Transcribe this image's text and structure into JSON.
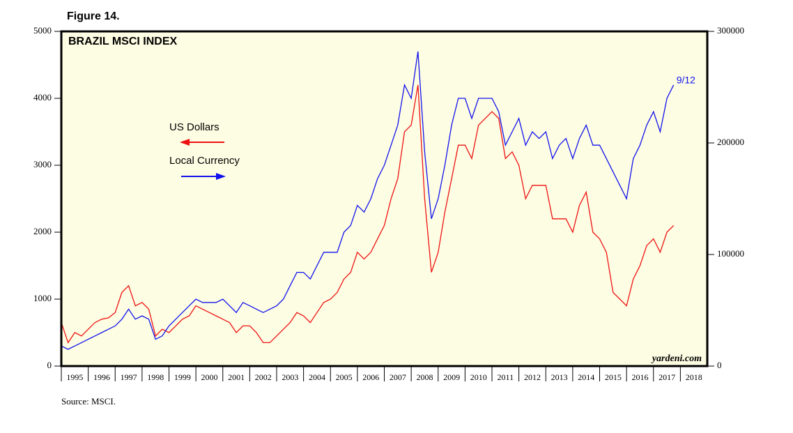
{
  "chart_data": {
    "type": "line",
    "figure_label": "Figure 14.",
    "title": "BRAZIL MSCI INDEX",
    "source": "Source: MSCI.",
    "watermark": "yardeni.com",
    "end_label": "9/12",
    "xlim": [
      1995,
      2019
    ],
    "xticks": [
      1995,
      1996,
      1997,
      1998,
      1999,
      2000,
      2001,
      2002,
      2003,
      2004,
      2005,
      2006,
      2007,
      2008,
      2009,
      2010,
      2011,
      2012,
      2013,
      2014,
      2015,
      2016,
      2017,
      2018
    ],
    "ylim": [
      0,
      5000
    ],
    "yticks": [
      0,
      1000,
      2000,
      3000,
      4000,
      5000
    ],
    "y2lim": [
      0,
      300000
    ],
    "y2ticks": [
      0,
      100000,
      200000,
      300000
    ],
    "x": [
      1995,
      1995.25,
      1995.5,
      1995.75,
      1996,
      1996.25,
      1996.5,
      1996.75,
      1997,
      1997.25,
      1997.5,
      1997.75,
      1998,
      1998.25,
      1998.5,
      1998.75,
      1999,
      1999.25,
      1999.5,
      1999.75,
      2000,
      2000.25,
      2000.5,
      2000.75,
      2001,
      2001.25,
      2001.5,
      2001.75,
      2002,
      2002.25,
      2002.5,
      2002.75,
      2003,
      2003.25,
      2003.5,
      2003.75,
      2004,
      2004.25,
      2004.5,
      2004.75,
      2005,
      2005.25,
      2005.5,
      2005.75,
      2006,
      2006.25,
      2006.5,
      2006.75,
      2007,
      2007.25,
      2007.5,
      2007.75,
      2008,
      2008.25,
      2008.5,
      2008.75,
      2009,
      2009.25,
      2009.5,
      2009.75,
      2010,
      2010.25,
      2010.5,
      2010.75,
      2011,
      2011.25,
      2011.5,
      2011.75,
      2012,
      2012.25,
      2012.5,
      2012.75,
      2013,
      2013.25,
      2013.5,
      2013.75,
      2014,
      2014.25,
      2014.5,
      2014.75,
      2015,
      2015.25,
      2015.5,
      2015.75,
      2016,
      2016.25,
      2016.5,
      2016.75,
      2017,
      2017.25,
      2017.5,
      2017.75
    ],
    "series": [
      {
        "name": "US Dollars",
        "color": "#ee1111",
        "axis": "y",
        "values": [
          650,
          350,
          500,
          450,
          550,
          650,
          700,
          720,
          800,
          1100,
          1200,
          900,
          950,
          850,
          450,
          550,
          500,
          600,
          700,
          750,
          900,
          850,
          800,
          750,
          700,
          650,
          500,
          600,
          600,
          500,
          350,
          350,
          450,
          550,
          650,
          800,
          750,
          650,
          800,
          950,
          1000,
          1100,
          1300,
          1400,
          1700,
          1600,
          1700,
          1900,
          2100,
          2500,
          2800,
          3500,
          3600,
          4200,
          2500,
          1400,
          1700,
          2300,
          2800,
          3300,
          3300,
          3100,
          3600,
          3700,
          3800,
          3700,
          3100,
          3200,
          3000,
          2500,
          2700,
          2700,
          2700,
          2200,
          2200,
          2200,
          2000,
          2400,
          2600,
          2000,
          1900,
          1700,
          1100,
          1000,
          900,
          1300,
          1500,
          1800,
          1900,
          1700,
          2000,
          2100
        ]
      },
      {
        "name": "Local Currency",
        "color": "#1111ee",
        "axis": "y2",
        "values": [
          18000,
          15000,
          18000,
          21000,
          24000,
          27000,
          30000,
          33000,
          36000,
          42000,
          51000,
          42000,
          45000,
          42000,
          24000,
          27000,
          36000,
          42000,
          48000,
          54000,
          60000,
          57000,
          57000,
          57000,
          60000,
          54000,
          48000,
          57000,
          54000,
          51000,
          48000,
          51000,
          54000,
          60000,
          72000,
          84000,
          84000,
          78000,
          90000,
          102000,
          102000,
          102000,
          120000,
          126000,
          144000,
          138000,
          150000,
          168000,
          180000,
          198000,
          216000,
          252000,
          240000,
          282000,
          192000,
          132000,
          150000,
          180000,
          216000,
          240000,
          240000,
          222000,
          240000,
          240000,
          240000,
          228000,
          198000,
          210000,
          222000,
          198000,
          210000,
          204000,
          210000,
          186000,
          198000,
          204000,
          186000,
          204000,
          216000,
          198000,
          198000,
          186000,
          174000,
          162000,
          150000,
          186000,
          198000,
          216000,
          228000,
          210000,
          240000,
          252000
        ]
      }
    ]
  }
}
